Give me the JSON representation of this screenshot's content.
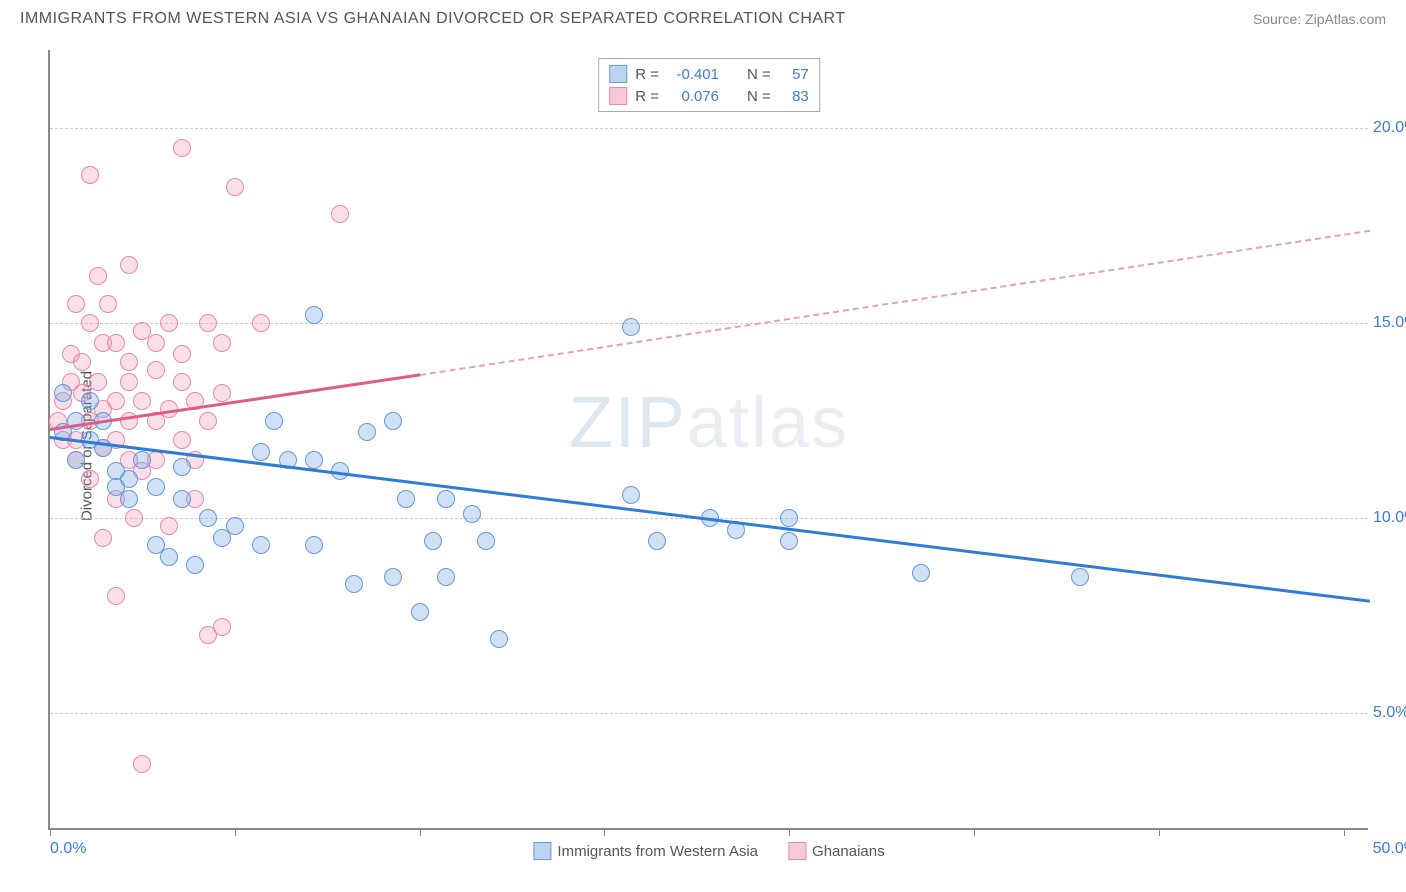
{
  "title": "IMMIGRANTS FROM WESTERN ASIA VS GHANAIAN DIVORCED OR SEPARATED CORRELATION CHART",
  "source": "Source: ZipAtlas.com",
  "watermark": "ZIPatlas",
  "yaxis_label": "Divorced or Separated",
  "chart": {
    "type": "scatter",
    "xlim": [
      0,
      50
    ],
    "ylim": [
      2,
      22
    ],
    "background_color": "#ffffff",
    "grid_color": "#cccccc",
    "axis_color": "#888888",
    "y_ticks": [
      5,
      10,
      15,
      20
    ],
    "y_tick_labels": [
      "5.0%",
      "10.0%",
      "15.0%",
      "20.0%"
    ],
    "x_tick_positions": [
      0,
      7,
      14,
      21,
      28,
      35,
      42,
      49
    ],
    "x_start_label": "0.0%",
    "x_end_label": "50.0%",
    "tick_color": "#3b7dd8",
    "tick_fontsize": 16
  },
  "stats_legend": {
    "series1": {
      "r_label": "R =",
      "r_value": "-0.401",
      "n_label": "N =",
      "n_value": "57"
    },
    "series2": {
      "r_label": "R =",
      "r_value": "0.076",
      "n_label": "N =",
      "n_value": "83"
    }
  },
  "bottom_legend": {
    "series1_label": "Immigrants from Western Asia",
    "series2_label": "Ghanaians"
  },
  "series_blue": {
    "color_fill": "rgba(120, 170, 230, 0.35)",
    "color_stroke": "#6699dd",
    "marker_size": 18,
    "regression": {
      "color": "#2e7cd6",
      "width": 2.5,
      "x1": 0,
      "y1": 12.1,
      "x2": 50,
      "y2": 7.9
    },
    "points": [
      [
        0.5,
        12.2
      ],
      [
        0.5,
        13.2
      ],
      [
        1,
        12.5
      ],
      [
        1,
        11.5
      ],
      [
        1.5,
        12.0
      ],
      [
        1.5,
        13.0
      ],
      [
        2,
        12.5
      ],
      [
        2,
        11.8
      ],
      [
        2.5,
        11.2
      ],
      [
        2.5,
        10.8
      ],
      [
        3,
        11.0
      ],
      [
        3,
        10.5
      ],
      [
        3.5,
        11.5
      ],
      [
        4,
        10.8
      ],
      [
        4,
        9.3
      ],
      [
        4.5,
        9.0
      ],
      [
        5,
        11.3
      ],
      [
        5,
        10.5
      ],
      [
        5.5,
        8.8
      ],
      [
        6,
        10.0
      ],
      [
        6.5,
        9.5
      ],
      [
        7,
        9.8
      ],
      [
        8,
        11.7
      ],
      [
        8,
        9.3
      ],
      [
        8.5,
        12.5
      ],
      [
        9,
        11.5
      ],
      [
        10,
        15.2
      ],
      [
        10,
        11.5
      ],
      [
        10,
        9.3
      ],
      [
        11,
        11.2
      ],
      [
        11.5,
        8.3
      ],
      [
        12,
        12.2
      ],
      [
        13,
        12.5
      ],
      [
        13,
        8.5
      ],
      [
        13.5,
        10.5
      ],
      [
        14,
        7.6
      ],
      [
        14.5,
        9.4
      ],
      [
        15,
        10.5
      ],
      [
        15,
        8.5
      ],
      [
        16,
        10.1
      ],
      [
        16.5,
        9.4
      ],
      [
        17,
        6.9
      ],
      [
        22,
        14.9
      ],
      [
        22,
        10.6
      ],
      [
        23,
        9.4
      ],
      [
        25,
        10.0
      ],
      [
        26,
        9.7
      ],
      [
        28,
        10.0
      ],
      [
        28,
        9.4
      ],
      [
        33,
        8.6
      ],
      [
        39,
        8.5
      ]
    ]
  },
  "series_pink": {
    "color_fill": "rgba(240, 150, 180, 0.3)",
    "color_stroke": "#e88aa8",
    "marker_size": 18,
    "regression_solid": {
      "color": "#e05a8a",
      "width": 2.5,
      "x1": 0,
      "y1": 12.3,
      "x2": 14,
      "y2": 13.7
    },
    "regression_dashed": {
      "color": "#e8a0b8",
      "width": 2,
      "x1": 14,
      "y1": 13.7,
      "x2": 50,
      "y2": 17.4
    },
    "points": [
      [
        0.3,
        12.5
      ],
      [
        0.5,
        13.0
      ],
      [
        0.5,
        12.0
      ],
      [
        0.8,
        13.5
      ],
      [
        0.8,
        14.2
      ],
      [
        1,
        12.0
      ],
      [
        1,
        11.5
      ],
      [
        1,
        15.5
      ],
      [
        1.2,
        14.0
      ],
      [
        1.2,
        13.2
      ],
      [
        1.5,
        12.5
      ],
      [
        1.5,
        15.0
      ],
      [
        1.5,
        18.8
      ],
      [
        1.5,
        11.0
      ],
      [
        1.8,
        13.5
      ],
      [
        1.8,
        16.2
      ],
      [
        2,
        12.8
      ],
      [
        2,
        11.8
      ],
      [
        2,
        14.5
      ],
      [
        2,
        9.5
      ],
      [
        2.2,
        15.5
      ],
      [
        2.5,
        13.0
      ],
      [
        2.5,
        12.0
      ],
      [
        2.5,
        14.5
      ],
      [
        2.5,
        10.5
      ],
      [
        2.5,
        8.0
      ],
      [
        3,
        13.5
      ],
      [
        3,
        12.5
      ],
      [
        3,
        11.5
      ],
      [
        3,
        14.0
      ],
      [
        3,
        16.5
      ],
      [
        3.2,
        10.0
      ],
      [
        3.5,
        13.0
      ],
      [
        3.5,
        14.8
      ],
      [
        3.5,
        11.2
      ],
      [
        3.5,
        3.7
      ],
      [
        4,
        12.5
      ],
      [
        4,
        13.8
      ],
      [
        4,
        14.5
      ],
      [
        4,
        11.5
      ],
      [
        4.5,
        12.8
      ],
      [
        4.5,
        15.0
      ],
      [
        4.5,
        9.8
      ],
      [
        5,
        13.5
      ],
      [
        5,
        12.0
      ],
      [
        5,
        14.2
      ],
      [
        5,
        19.5
      ],
      [
        5.5,
        13.0
      ],
      [
        5.5,
        11.5
      ],
      [
        5.5,
        10.5
      ],
      [
        6,
        15.0
      ],
      [
        6,
        12.5
      ],
      [
        6,
        7.0
      ],
      [
        6.5,
        13.2
      ],
      [
        6.5,
        14.5
      ],
      [
        6.5,
        7.2
      ],
      [
        7,
        18.5
      ],
      [
        8,
        15.0
      ],
      [
        11,
        17.8
      ]
    ]
  }
}
